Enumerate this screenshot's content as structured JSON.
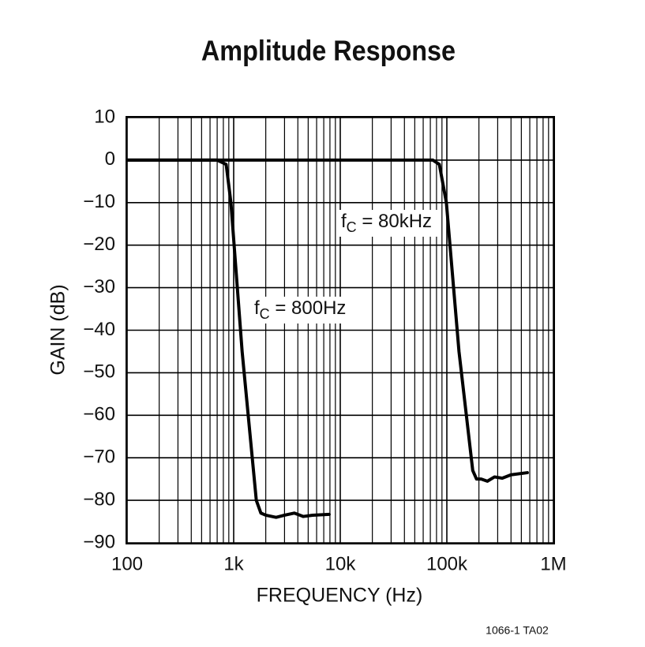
{
  "chart_data": {
    "type": "line",
    "title": "Amplitude Response",
    "x_label": "FREQUENCY (Hz)",
    "y_label": "GAIN (dB)",
    "x_log": true,
    "grid": true,
    "xlim": [
      100,
      1000000
    ],
    "ylim": [
      -90,
      10
    ],
    "xticks": [
      100,
      {
        "value": 1000,
        "label": "1k"
      },
      {
        "value": 10000,
        "label": "10k"
      },
      {
        "value": 100000,
        "label": "100k"
      },
      {
        "value": 1000000,
        "label": "1M"
      }
    ],
    "xminorticks": [
      200,
      300,
      400,
      500,
      600,
      700,
      800,
      900,
      2000,
      3000,
      4000,
      5000,
      6000,
      7000,
      8000,
      9000,
      20000,
      30000,
      40000,
      50000,
      60000,
      70000,
      80000,
      90000,
      200000,
      300000,
      400000,
      500000,
      600000,
      700000,
      800000,
      900000
    ],
    "yticks": [
      10,
      0,
      {
        "value": -10,
        "label": "−10"
      },
      {
        "value": -20,
        "label": "−20"
      },
      {
        "value": -30,
        "label": "−30"
      },
      {
        "value": -40,
        "label": "−40"
      },
      {
        "value": -50,
        "label": "−50"
      },
      {
        "value": -60,
        "label": "−60"
      },
      {
        "value": -70,
        "label": "−70"
      },
      {
        "value": -80,
        "label": "−80"
      },
      {
        "value": -90,
        "label": "−90"
      }
    ],
    "series": [
      {
        "color": "#000000",
        "x": [
          100,
          700,
          850,
          942,
          1200,
          1630,
          1800,
          2000,
          2500,
          3000,
          3700,
          4500,
          5500,
          7870
        ],
        "values": [
          0,
          0,
          -1,
          -10,
          -45,
          -80,
          -83,
          -83.5,
          -84,
          -83.5,
          -83,
          -83.8,
          -83.5,
          -83.3
        ]
      },
      {
        "color": "#000000",
        "x": [
          100,
          74000,
          85000,
          99000,
          130000,
          175000,
          190000,
          210000,
          240000,
          280000,
          330000,
          400000,
          569000
        ],
        "values": [
          0,
          0,
          -1,
          -10,
          -45,
          -73,
          -75,
          -75,
          -75.5,
          -74.5,
          -74.8,
          -74,
          -73.5
        ]
      }
    ],
    "annotations": [
      {
        "prefix": "f",
        "subscript": "C",
        "suffix": " = 80kHz"
      },
      {
        "prefix": "f",
        "subscript": "C",
        "suffix": " = 800Hz"
      }
    ],
    "footnote": "1066-1 TA02"
  }
}
